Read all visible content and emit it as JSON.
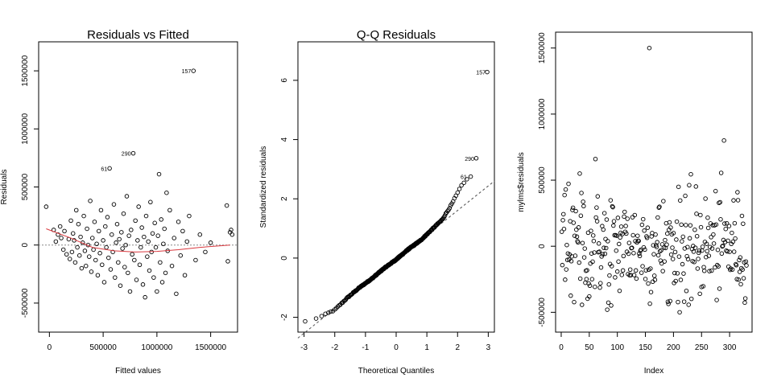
{
  "chart_data": [
    {
      "type": "scatter",
      "title": "Residuals vs Fitted",
      "xlabel": "Fitted values",
      "ylabel": "Residuals",
      "xlim": [
        -100000,
        1750000
      ],
      "ylim": [
        -750000,
        1750000
      ],
      "xticks": [
        0,
        500000,
        1000000,
        1500000
      ],
      "xtick_labels": [
        "0",
        "500000",
        "1000000",
        "1500000"
      ],
      "yticks": [
        -500000,
        0,
        500000,
        1000000,
        1500000
      ],
      "ytick_labels": [
        "-500000",
        "0",
        "500000",
        "1000000",
        "1500000"
      ],
      "reference_line": 0,
      "colors": {
        "points": "#000000",
        "smoother": "#d9393f",
        "reference": "#888888"
      },
      "annotations": [
        {
          "label": "157",
          "x": 1340000,
          "y": 1500000
        },
        {
          "label": "290",
          "x": 780000,
          "y": 790000
        },
        {
          "label": "61",
          "x": 560000,
          "y": 660000
        }
      ],
      "smoother": [
        {
          "x": -30000,
          "y": 140000
        },
        {
          "x": 200000,
          "y": 60000
        },
        {
          "x": 400000,
          "y": -20000
        },
        {
          "x": 600000,
          "y": -50000
        },
        {
          "x": 800000,
          "y": -60000
        },
        {
          "x": 1000000,
          "y": -55000
        },
        {
          "x": 1200000,
          "y": -40000
        },
        {
          "x": 1400000,
          "y": -20000
        },
        {
          "x": 1680000,
          "y": 0
        }
      ],
      "points": [
        [
          -30000,
          330000
        ],
        [
          40000,
          130000
        ],
        [
          60000,
          30000
        ],
        [
          80000,
          90000
        ],
        [
          100000,
          160000
        ],
        [
          110000,
          60000
        ],
        [
          130000,
          -40000
        ],
        [
          140000,
          120000
        ],
        [
          160000,
          -80000
        ],
        [
          180000,
          50000
        ],
        [
          190000,
          -120000
        ],
        [
          200000,
          210000
        ],
        [
          210000,
          -60000
        ],
        [
          220000,
          100000
        ],
        [
          230000,
          40000
        ],
        [
          240000,
          -150000
        ],
        [
          250000,
          300000
        ],
        [
          260000,
          -20000
        ],
        [
          270000,
          180000
        ],
        [
          280000,
          -90000
        ],
        [
          290000,
          70000
        ],
        [
          300000,
          -200000
        ],
        [
          310000,
          20000
        ],
        [
          320000,
          250000
        ],
        [
          330000,
          -50000
        ],
        [
          340000,
          -180000
        ],
        [
          350000,
          140000
        ],
        [
          360000,
          0
        ],
        [
          370000,
          -100000
        ],
        [
          380000,
          380000
        ],
        [
          390000,
          -230000
        ],
        [
          400000,
          60000
        ],
        [
          410000,
          -40000
        ],
        [
          420000,
          200000
        ],
        [
          430000,
          -130000
        ],
        [
          440000,
          10000
        ],
        [
          450000,
          -260000
        ],
        [
          460000,
          120000
        ],
        [
          470000,
          -70000
        ],
        [
          480000,
          300000
        ],
        [
          490000,
          -170000
        ],
        [
          500000,
          40000
        ],
        [
          510000,
          -320000
        ],
        [
          520000,
          160000
        ],
        [
          530000,
          -20000
        ],
        [
          540000,
          240000
        ],
        [
          550000,
          -110000
        ],
        [
          560000,
          660000
        ],
        [
          570000,
          -210000
        ],
        [
          580000,
          90000
        ],
        [
          590000,
          -60000
        ],
        [
          600000,
          350000
        ],
        [
          610000,
          -280000
        ],
        [
          620000,
          20000
        ],
        [
          630000,
          180000
        ],
        [
          640000,
          -150000
        ],
        [
          650000,
          50000
        ],
        [
          660000,
          -350000
        ],
        [
          670000,
          110000
        ],
        [
          680000,
          -30000
        ],
        [
          690000,
          270000
        ],
        [
          700000,
          -190000
        ],
        [
          710000,
          0
        ],
        [
          720000,
          420000
        ],
        [
          730000,
          -240000
        ],
        [
          740000,
          80000
        ],
        [
          750000,
          -400000
        ],
        [
          760000,
          130000
        ],
        [
          770000,
          -80000
        ],
        [
          780000,
          790000
        ],
        [
          790000,
          -130000
        ],
        [
          800000,
          210000
        ],
        [
          810000,
          -300000
        ],
        [
          820000,
          40000
        ],
        [
          830000,
          330000
        ],
        [
          840000,
          -170000
        ],
        [
          850000,
          -20000
        ],
        [
          860000,
          150000
        ],
        [
          870000,
          -340000
        ],
        [
          880000,
          70000
        ],
        [
          890000,
          -450000
        ],
        [
          900000,
          250000
        ],
        [
          910000,
          -100000
        ],
        [
          920000,
          30000
        ],
        [
          930000,
          -220000
        ],
        [
          940000,
          370000
        ],
        [
          950000,
          -60000
        ],
        [
          960000,
          100000
        ],
        [
          970000,
          -280000
        ],
        [
          980000,
          190000
        ],
        [
          990000,
          -20000
        ],
        [
          1000000,
          -400000
        ],
        [
          1010000,
          80000
        ],
        [
          1020000,
          610000
        ],
        [
          1030000,
          -150000
        ],
        [
          1040000,
          220000
        ],
        [
          1050000,
          -320000
        ],
        [
          1060000,
          10000
        ],
        [
          1070000,
          140000
        ],
        [
          1080000,
          -240000
        ],
        [
          1090000,
          450000
        ],
        [
          1100000,
          -50000
        ],
        [
          1120000,
          300000
        ],
        [
          1140000,
          -180000
        ],
        [
          1160000,
          60000
        ],
        [
          1180000,
          -420000
        ],
        [
          1200000,
          200000
        ],
        [
          1220000,
          -90000
        ],
        [
          1240000,
          120000
        ],
        [
          1260000,
          -260000
        ],
        [
          1280000,
          30000
        ],
        [
          1300000,
          250000
        ],
        [
          1340000,
          1500000
        ],
        [
          1360000,
          -130000
        ],
        [
          1400000,
          90000
        ],
        [
          1450000,
          -60000
        ],
        [
          1500000,
          20000
        ],
        [
          1650000,
          340000
        ],
        [
          1660000,
          -140000
        ],
        [
          1680000,
          110000
        ],
        [
          1690000,
          130000
        ],
        [
          1700000,
          90000
        ]
      ]
    },
    {
      "type": "scatter",
      "title": "Q-Q Residuals",
      "xlabel": "Theoretical Quantiles",
      "ylabel": "Standardized residuals",
      "xlim": [
        -3.2,
        3.2
      ],
      "ylim": [
        -2.5,
        7.3
      ],
      "xticks": [
        -3,
        -2,
        -1,
        0,
        1,
        2,
        3
      ],
      "xtick_labels": [
        "-3",
        "-2",
        "-1",
        "0",
        "1",
        "2",
        "3"
      ],
      "yticks": [
        -2,
        0,
        2,
        4,
        6
      ],
      "ytick_labels": [
        "-2",
        "0",
        "2",
        "4",
        "6"
      ],
      "qq_line": [
        {
          "x": -3.2,
          "y": -2.7
        },
        {
          "x": 3.2,
          "y": 2.6
        }
      ],
      "colors": {
        "points": "#000000",
        "reference": "#555555"
      },
      "annotations": [
        {
          "label": "157",
          "x": 2.99,
          "y": 6.28
        },
        {
          "label": "290",
          "x": 2.62,
          "y": 3.37
        },
        {
          "label": "61",
          "x": 2.38,
          "y": 2.75
        }
      ],
      "n_points": 330,
      "points_curve": [
        {
          "x": -2.99,
          "y": -2.15
        },
        {
          "x": -2.5,
          "y": -2.0
        },
        {
          "x": -2.0,
          "y": -1.75
        },
        {
          "x": -1.6,
          "y": -1.35
        },
        {
          "x": -1.2,
          "y": -1.0
        },
        {
          "x": -0.8,
          "y": -0.7
        },
        {
          "x": -0.4,
          "y": -0.35
        },
        {
          "x": 0.0,
          "y": -0.05
        },
        {
          "x": 0.4,
          "y": 0.3
        },
        {
          "x": 0.8,
          "y": 0.6
        },
        {
          "x": 1.2,
          "y": 1.0
        },
        {
          "x": 1.5,
          "y": 1.3
        },
        {
          "x": 1.8,
          "y": 1.8
        },
        {
          "x": 2.1,
          "y": 2.4
        },
        {
          "x": 2.3,
          "y": 2.65
        },
        {
          "x": 2.38,
          "y": 2.75
        },
        {
          "x": 2.62,
          "y": 3.37
        },
        {
          "x": 2.99,
          "y": 6.28
        }
      ]
    },
    {
      "type": "scatter",
      "title": "",
      "xlabel": "Index",
      "ylabel": "mylms$residuals",
      "xlim": [
        -10,
        340
      ],
      "ylim": [
        -650000,
        1620000
      ],
      "xticks": [
        0,
        50,
        100,
        150,
        200,
        250,
        300
      ],
      "xtick_labels": [
        "0",
        "50",
        "100",
        "150",
        "200",
        "250",
        "300"
      ],
      "yticks": [
        -500000,
        0,
        500000,
        1000000,
        1500000
      ],
      "ytick_labels": [
        "-500000",
        "0",
        "500000",
        "1000000",
        "1500000"
      ],
      "colors": {
        "points": "#000000"
      },
      "n_points": 330,
      "highlighted_points": [
        {
          "x": 157,
          "y": 1500000
        },
        {
          "x": 290,
          "y": 800000
        },
        {
          "x": 61,
          "y": 660000
        },
        {
          "x": 33,
          "y": 550000
        },
        {
          "x": 211,
          "y": -500000
        },
        {
          "x": 82,
          "y": -480000
        }
      ]
    }
  ]
}
